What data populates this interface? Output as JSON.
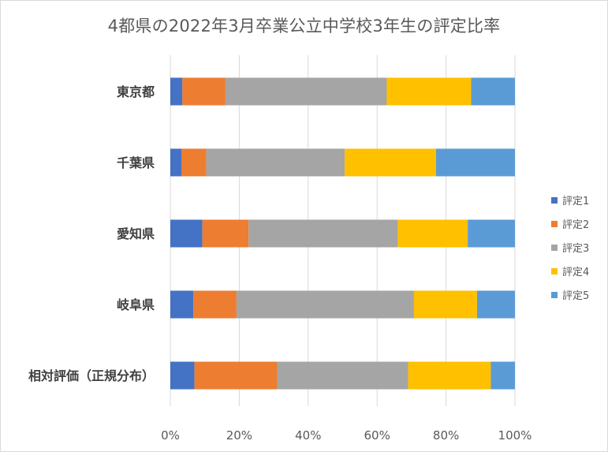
{
  "chart_data": {
    "type": "bar",
    "orientation": "horizontal",
    "stacked": true,
    "percent_stacked": true,
    "title": "4都県の2022年3月卒業公立中学校3年生の評定比率",
    "categories": [
      "東京都",
      "千葉県",
      "愛知県",
      "岐阜県",
      "相対評価（正規分布）"
    ],
    "series": [
      {
        "name": "評定1",
        "color": "#4472c4",
        "values": [
          3.5,
          3.2,
          9.3,
          6.7,
          7.0
        ]
      },
      {
        "name": "評定2",
        "color": "#ed7d31",
        "values": [
          12.5,
          7.2,
          13.4,
          12.5,
          24.0
        ]
      },
      {
        "name": "評定3",
        "color": "#a5a5a5",
        "values": [
          46.8,
          40.2,
          43.3,
          51.5,
          38.0
        ]
      },
      {
        "name": "評定4",
        "color": "#ffc000",
        "values": [
          24.5,
          26.5,
          20.3,
          18.3,
          24.0
        ]
      },
      {
        "name": "評定5",
        "color": "#5b9bd5",
        "values": [
          12.7,
          22.9,
          13.7,
          11.0,
          7.0
        ]
      }
    ],
    "x_ticks": [
      "0%",
      "20%",
      "40%",
      "60%",
      "80%",
      "100%"
    ],
    "xlim": [
      0,
      100
    ],
    "grid": true,
    "legend_position": "right"
  }
}
